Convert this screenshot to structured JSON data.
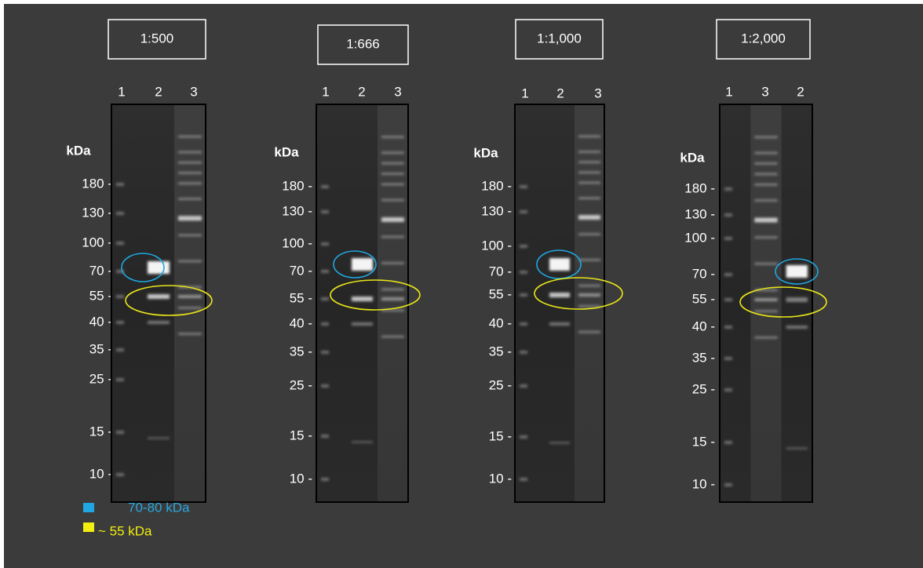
{
  "panels": [
    {
      "title": "1:500",
      "lanes": [
        "1",
        "2",
        "3"
      ],
      "unit": "kDa",
      "markers": [
        "180 -",
        "130 -",
        "100 -",
        "70 -",
        "55 -",
        "40 -",
        "35 -",
        "25 -",
        "15 -",
        "10 -"
      ]
    },
    {
      "title": "1:666",
      "lanes": [
        "1",
        "2",
        "3"
      ],
      "unit": "kDa",
      "markers": [
        "180 -",
        "130 -",
        "100 -",
        "70 -",
        "55 -",
        "40 -",
        "35 -",
        "25 -",
        "15 -",
        "10 -"
      ]
    },
    {
      "title": "1:1,000",
      "lanes": [
        "1",
        "2",
        "3"
      ],
      "unit": "kDa",
      "markers": [
        "180 -",
        "130 -",
        "100 -",
        "70 -",
        "55 -",
        "40 -",
        "35 -",
        "25 -",
        "15 -",
        "10 -"
      ]
    },
    {
      "title": "1:2,000",
      "lanes": [
        "1",
        "3",
        "2"
      ],
      "unit": "kDa",
      "markers": [
        "180 -",
        "130 -",
        "100 -",
        "70 -",
        "55 -",
        "40 -",
        "35 -",
        "25 -",
        "15 -",
        "10 -"
      ]
    }
  ],
  "legend": [
    {
      "label": "70-80 kDa"
    },
    {
      "label": "~ 55 kDa"
    }
  ]
}
